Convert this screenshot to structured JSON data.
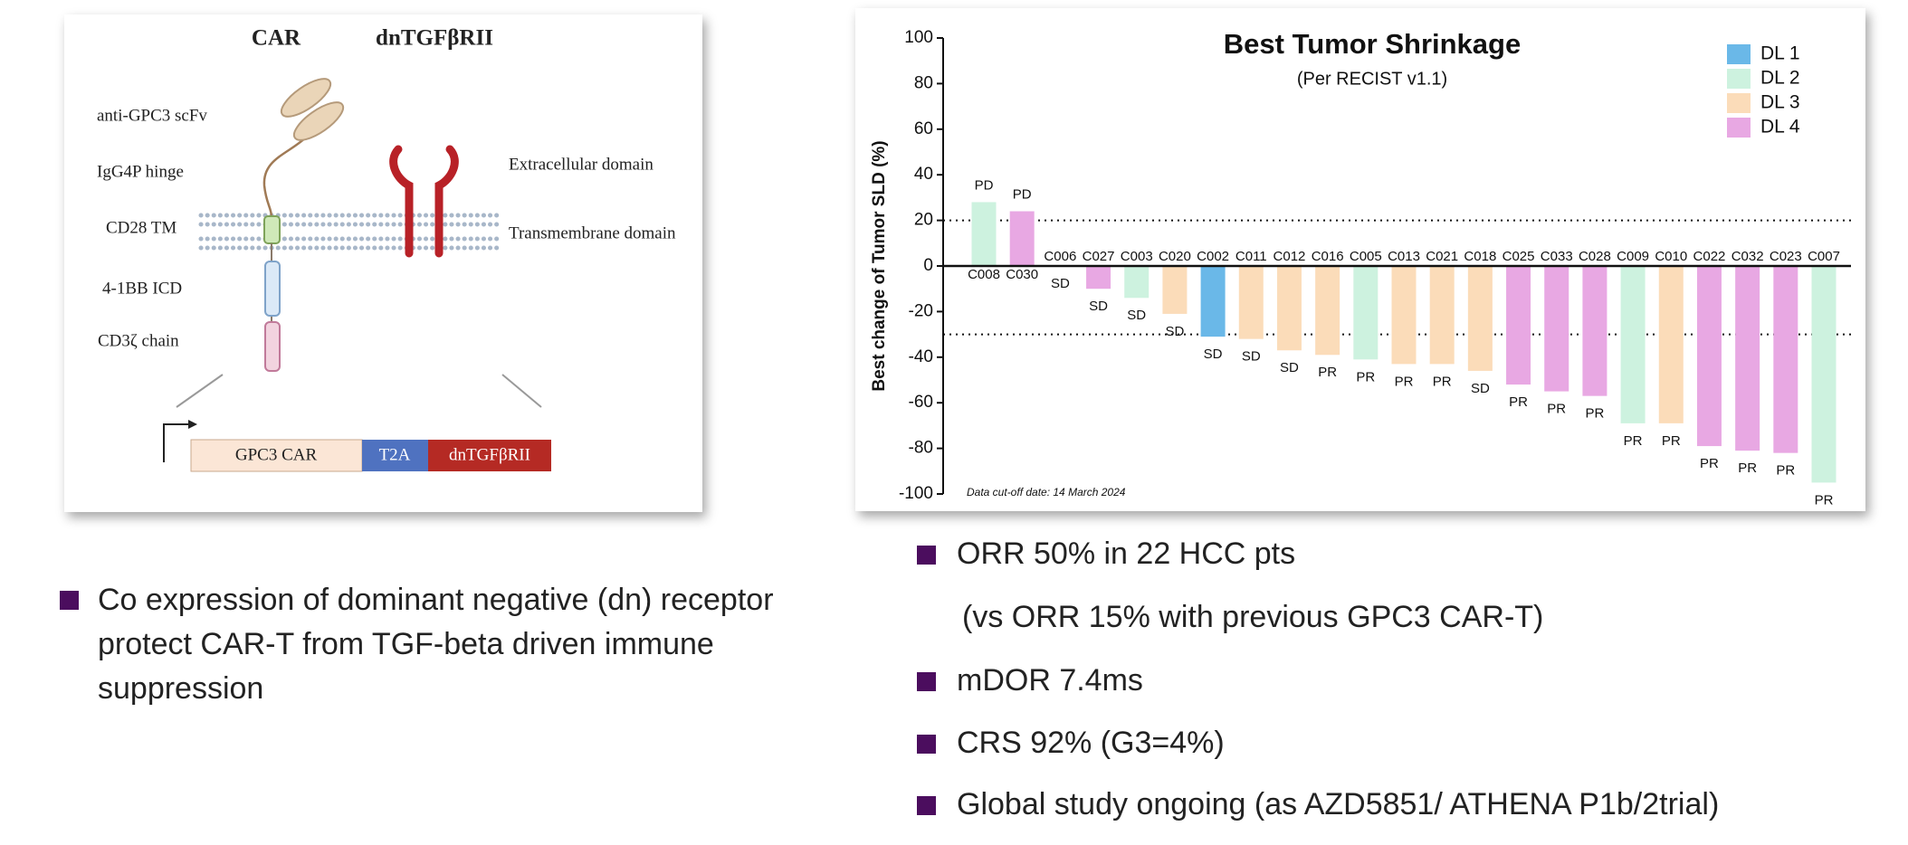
{
  "diagram": {
    "headers": [
      "CAR",
      "dnTGFβRII"
    ],
    "car_parts": [
      "anti-GPC3 scFv",
      "IgG4P hinge",
      "CD28 TM",
      "4-1BB ICD",
      "CD3ζ chain"
    ],
    "domains": [
      "Extracellular domain",
      "Transmembrane domain"
    ],
    "construct": [
      "GPC3 CAR",
      "T2A",
      "dnTGFβRII"
    ]
  },
  "left_bullet": {
    "lines": [
      "Co expression of dominant negative (dn) receptor",
      "protect CAR-T from TGF-beta driven immune",
      "suppression"
    ]
  },
  "right_bullets": [
    "ORR 50% in 22 HCC pts",
    "mDOR 7.4ms",
    "CRS 92% (G3=4%)",
    "Global study ongoing (as AZD5851/ ATHENA P1b/2trial)"
  ],
  "right_bullet_note": "(vs ORR 15% with previous GPC3 CAR-T)",
  "chart_data": {
    "type": "bar",
    "title": "Best Tumor Shrinkage",
    "subtitle": "(Per RECIST v1.1)",
    "ylabel": "Best change of Tumor SLD (%)",
    "footnote": "Data cut-off date: 14 March 2024",
    "categories": [
      "C008",
      "C030",
      "C006",
      "C027",
      "C003",
      "C020",
      "C002",
      "C011",
      "C012",
      "C016",
      "C005",
      "C013",
      "C021",
      "C018",
      "C025",
      "C033",
      "C028",
      "C009",
      "C010",
      "C022",
      "C032",
      "C023",
      "C007"
    ],
    "values": [
      28,
      24,
      0,
      -10,
      -14,
      -21,
      -31,
      -32,
      -37,
      -39,
      -41,
      -43,
      -43,
      -46,
      -52,
      -55,
      -57,
      -69,
      -69,
      -79,
      -81,
      -82,
      -95
    ],
    "response": [
      "PD",
      "PD",
      "SD",
      "SD",
      "SD",
      "SD",
      "SD",
      "SD",
      "SD",
      "PR",
      "PR",
      "PR",
      "PR",
      "SD",
      "PR",
      "PR",
      "PR",
      "PR",
      "PR",
      "PR",
      "PR",
      "PR",
      "PR"
    ],
    "dose_level": [
      "DL 2",
      "DL 4",
      null,
      "DL 4",
      "DL 2",
      "DL 3",
      "DL 1",
      "DL 3",
      "DL 3",
      "DL 3",
      "DL 2",
      "DL 3",
      "DL 3",
      "DL 3",
      "DL 4",
      "DL 4",
      "DL 4",
      "DL 2",
      "DL 3",
      "DL 4",
      "DL 4",
      "DL 4",
      "DL 2"
    ],
    "legend": [
      {
        "name": "DL 1",
        "color": "#6ab8e8"
      },
      {
        "name": "DL 2",
        "color": "#cdf2df"
      },
      {
        "name": "DL 3",
        "color": "#fbdcb9"
      },
      {
        "name": "DL 4",
        "color": "#e8a8e3"
      }
    ],
    "legend_position": "top-right",
    "reference_lines": [
      20,
      -30
    ],
    "ylim": [
      -100,
      100
    ],
    "yticks": [
      -100,
      -80,
      -60,
      -40,
      -20,
      0,
      20,
      40,
      60,
      80,
      100
    ]
  }
}
